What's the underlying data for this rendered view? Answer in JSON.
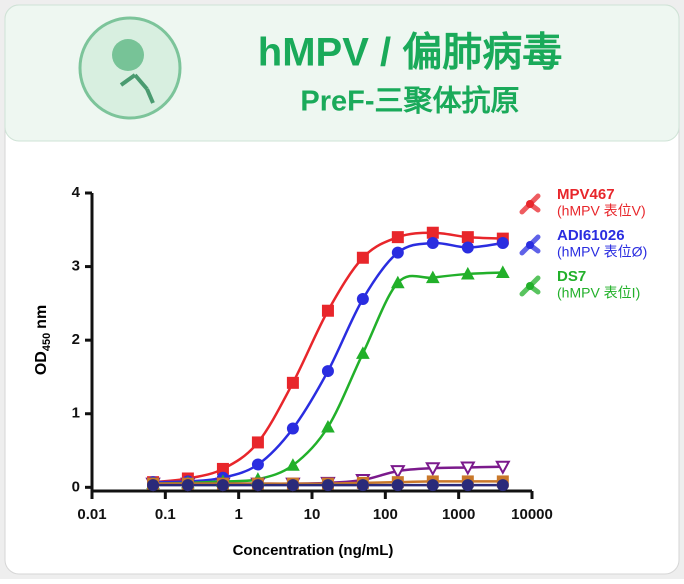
{
  "header": {
    "title": "hMPV / 偏肺病毒",
    "subtitle": "PreF-三聚体抗原"
  },
  "chart_data": {
    "type": "scatter",
    "x_label": "Concentration (ng/mL)",
    "y_label": {
      "main": "OD",
      "sub": "450",
      "unit": "nm"
    },
    "xscale": "log",
    "xlim": [
      0.01,
      10000
    ],
    "xticks": [
      0.01,
      0.1,
      1,
      10,
      100,
      1000,
      10000
    ],
    "ylim": [
      -0.05,
      4
    ],
    "yticks": [
      0,
      1,
      2,
      3,
      4
    ],
    "x": [
      0.068,
      0.203,
      0.61,
      1.83,
      5.49,
      16.5,
      49.4,
      148,
      444,
      1333,
      4000
    ],
    "series": [
      {
        "name": "MPV467",
        "epitope": "(hMPV 表位V)",
        "color": "#e8262b",
        "marker": "square",
        "open": false,
        "values": [
          0.07,
          0.12,
          0.25,
          0.61,
          1.42,
          2.4,
          3.12,
          3.4,
          3.46,
          3.4,
          3.38
        ]
      },
      {
        "name": "ADI61026",
        "epitope": "(hMPV 表位Ø)",
        "color": "#2a2de0",
        "marker": "circle",
        "open": false,
        "values": [
          0.07,
          0.08,
          0.13,
          0.31,
          0.8,
          1.58,
          2.56,
          3.19,
          3.32,
          3.26,
          3.32
        ]
      },
      {
        "name": "DS7",
        "epitope": "(hMPV 表位I)",
        "color": "#22b02a",
        "marker": "triangle",
        "open": false,
        "values": [
          0.05,
          0.06,
          0.08,
          0.11,
          0.3,
          0.82,
          1.82,
          2.78,
          2.85,
          2.9,
          2.92
        ]
      },
      {
        "color": "#7b1a8c",
        "marker": "triangle-down",
        "open": true,
        "values": [
          0.05,
          0.05,
          0.05,
          0.05,
          0.05,
          0.06,
          0.1,
          0.22,
          0.26,
          0.27,
          0.28
        ]
      },
      {
        "color": "#c9782a",
        "marker": "square",
        "open": false,
        "values": [
          0.05,
          0.05,
          0.05,
          0.05,
          0.05,
          0.05,
          0.06,
          0.07,
          0.08,
          0.08,
          0.08
        ]
      },
      {
        "color": "#2a2a7a",
        "marker": "circle",
        "open": false,
        "values": [
          0.03,
          0.03,
          0.03,
          0.03,
          0.03,
          0.03,
          0.03,
          0.03,
          0.03,
          0.03,
          0.03
        ]
      }
    ]
  }
}
